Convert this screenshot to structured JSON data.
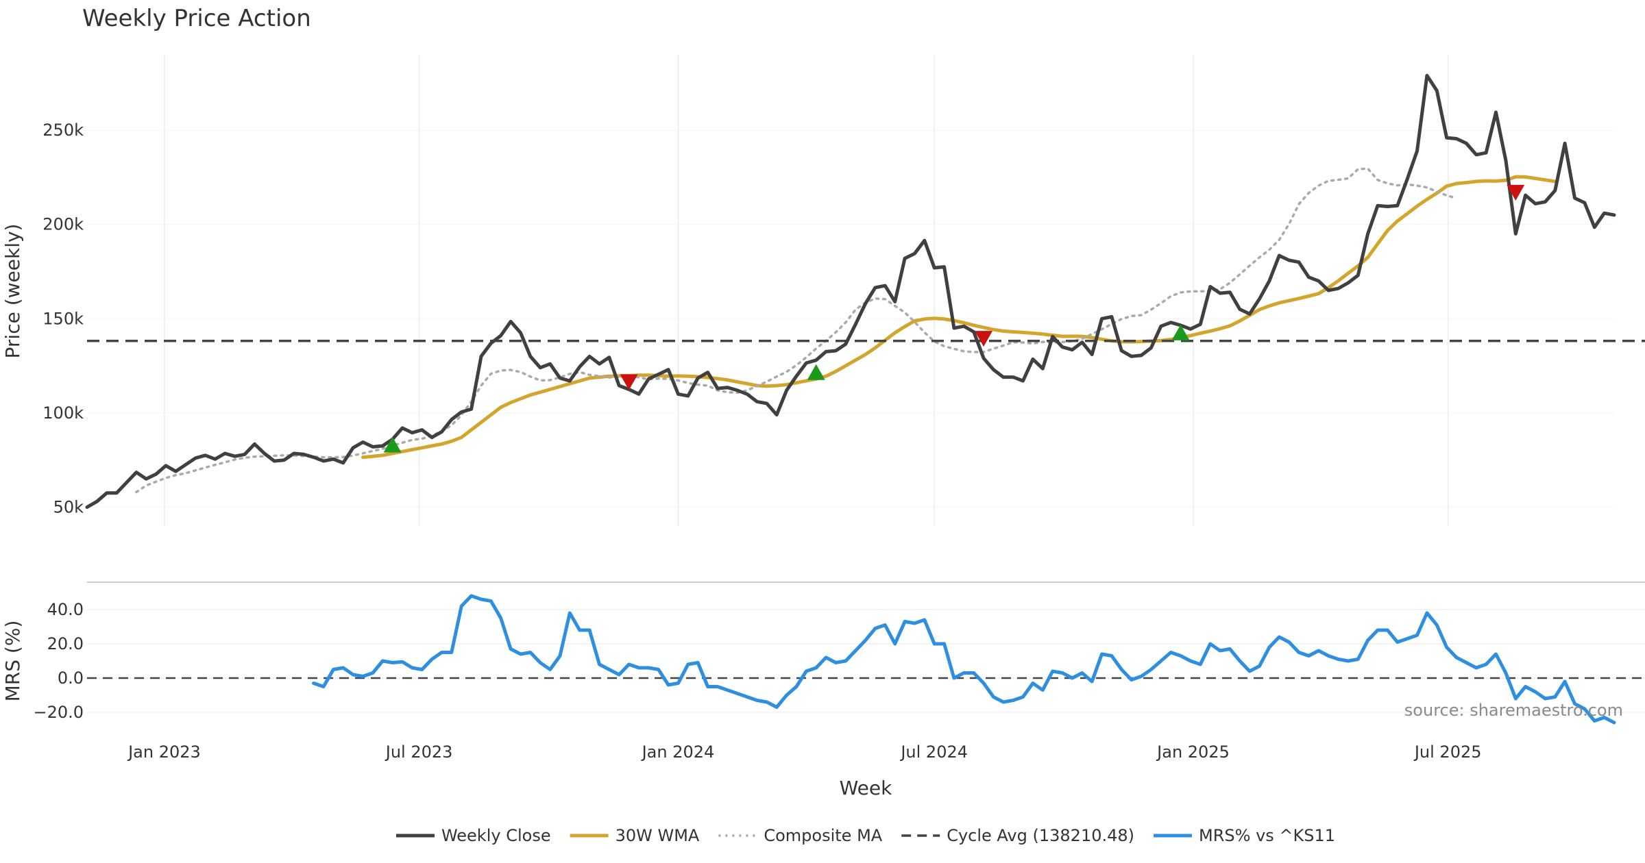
{
  "chart_data": [
    {
      "type": "line",
      "title": "Weekly Price Action",
      "ylabel": "Price (weekly)",
      "ylim": [
        40000,
        290000
      ],
      "y_ticks": [
        {
          "value": 50000,
          "label": "50k"
        },
        {
          "value": 100000,
          "label": "100k"
        },
        {
          "value": 150000,
          "label": "150k"
        },
        {
          "value": 200000,
          "label": "200k"
        },
        {
          "value": 250000,
          "label": "250k"
        }
      ],
      "grid": true,
      "x_start": "2022-11-07",
      "x_step_days": 7,
      "xlim": [
        "2022-11-07",
        "2025-10-27"
      ],
      "series": [
        {
          "name": "Weekly Close",
          "color": "#404040",
          "style": "solid",
          "values": [
            50000,
            53000,
            57500,
            57500,
            63000,
            68500,
            65000,
            67500,
            72000,
            69000,
            72500,
            76000,
            77500,
            75500,
            78500,
            77000,
            78000,
            83500,
            78500,
            74500,
            75000,
            78500,
            78000,
            76500,
            74500,
            75500,
            73500,
            81500,
            84500,
            82000,
            82500,
            86000,
            92000,
            89500,
            91000,
            87000,
            90000,
            96500,
            100500,
            102000,
            130000,
            137000,
            141000,
            148500,
            142500,
            130000,
            124000,
            126000,
            118500,
            117000,
            124500,
            130000,
            126000,
            129500,
            114500,
            112500,
            110000,
            118000,
            120500,
            123000,
            110000,
            109000,
            118500,
            121500,
            113000,
            113500,
            112000,
            110000,
            106000,
            105000,
            99000,
            112000,
            119500,
            126500,
            128000,
            132500,
            133000,
            136500,
            147000,
            158000,
            166500,
            167500,
            159000,
            182000,
            184500,
            191500,
            177000,
            177500,
            145000,
            146000,
            143000,
            129000,
            123000,
            119000,
            119000,
            117000,
            128500,
            123500,
            140500,
            135000,
            133500,
            137500,
            131000,
            150000,
            151000,
            133000,
            130000,
            130500,
            134500,
            146000,
            148000,
            146500,
            144500,
            147000,
            167000,
            163500,
            164000,
            155000,
            152500,
            160500,
            170000,
            183500,
            181000,
            180000,
            172000,
            170000,
            165000,
            166000,
            169000,
            173000,
            195000,
            210000,
            209500,
            210000,
            224000,
            239000,
            279000,
            271000,
            246000,
            245500,
            243000,
            237000,
            238000,
            259500,
            234000,
            195000,
            215500,
            211000,
            212000,
            218000,
            243000,
            214000,
            211500,
            198500,
            206000,
            205000
          ]
        },
        {
          "name": "30W WMA",
          "color": "#d4a52c",
          "style": "solid",
          "start_index": 28,
          "values": [
            76500,
            77000,
            77500,
            78500,
            79500,
            80500,
            81500,
            82500,
            83500,
            85000,
            87000,
            91000,
            95000,
            99000,
            103000,
            105500,
            107500,
            109500,
            111000,
            112500,
            114000,
            115500,
            117000,
            118500,
            119000,
            119500,
            119700,
            119800,
            120000,
            120000,
            119800,
            119500,
            119600,
            119500,
            119200,
            118800,
            118200,
            117500,
            116500,
            115500,
            114500,
            114200,
            114500,
            115000,
            116000,
            117000,
            118000,
            119500,
            122000,
            125000,
            128000,
            131000,
            134500,
            138500,
            142500,
            145800,
            148800,
            149800,
            150200,
            149800,
            149000,
            147800,
            146500,
            145300,
            144200,
            143400,
            143000,
            142700,
            142300,
            141800,
            141200,
            140600,
            140700,
            140600,
            140000,
            139100,
            138200,
            137800,
            137700,
            137900,
            138100,
            138400,
            139000,
            140000,
            141000,
            142300,
            143400,
            144700,
            146200,
            148800,
            151800,
            154800,
            156800,
            158400,
            159600,
            160700,
            162000,
            163300,
            166400,
            170100,
            174100,
            178000,
            182500,
            189700,
            196800,
            201800,
            205700,
            209700,
            213300,
            216600,
            220300,
            221700,
            222200,
            222800,
            223100,
            223000,
            223400,
            225300,
            225200,
            224400,
            223600,
            222800
          ]
        },
        {
          "name": "Composite MA",
          "color": "#aaaaaa",
          "style": "dotted",
          "start_index": 5,
          "values": [
            58000,
            61500,
            63500,
            65500,
            67000,
            68000,
            69500,
            71000,
            72500,
            73800,
            75300,
            76200,
            76800,
            77000,
            77300,
            77500,
            77400,
            77100,
            76800,
            76500,
            76500,
            76600,
            77400,
            78600,
            79800,
            81000,
            82600,
            84200,
            85700,
            86300,
            88000,
            90200,
            93500,
            98800,
            106000,
            114500,
            120800,
            122500,
            122800,
            121700,
            119300,
            117200,
            117400,
            118800,
            120700,
            121600,
            120200,
            119500,
            118800,
            119000,
            119400,
            118900,
            117800,
            118200,
            118100,
            117200,
            115900,
            115000,
            114500,
            112000,
            111000,
            110700,
            112000,
            114300,
            116600,
            119300,
            121800,
            125300,
            129500,
            134200,
            138300,
            142800,
            148000,
            154800,
            158500,
            160700,
            160400,
            156800,
            153300,
            148300,
            142700,
            137900,
            135400,
            134000,
            132700,
            132300,
            132300,
            134100,
            135700,
            137500,
            137400,
            136800,
            137700,
            137400,
            137600,
            138000,
            139300,
            141900,
            144400,
            147200,
            149800,
            151400,
            151900,
            154800,
            158200,
            161900,
            163900,
            164500,
            164500,
            164700,
            165600,
            169000,
            173500,
            178100,
            182500,
            186600,
            191800,
            200200,
            210800,
            216700,
            220600,
            223100,
            223700,
            224400,
            229300,
            229600,
            223600,
            221800,
            220700,
            221200,
            220600,
            219600,
            217400,
            215400,
            213900
          ]
        },
        {
          "name": "Cycle Avg (138210.48)",
          "color": "#444444",
          "style": "dashed",
          "constant": 138210.48
        }
      ],
      "markers": [
        {
          "type": "buy",
          "index": 31,
          "value": 83000,
          "color": "#1a9a1a"
        },
        {
          "type": "sell",
          "index": 55,
          "value": 116500,
          "color": "#cc1111"
        },
        {
          "type": "buy",
          "index": 74,
          "value": 121500,
          "color": "#1a9a1a"
        },
        {
          "type": "sell",
          "index": 91,
          "value": 139500,
          "color": "#cc1111"
        },
        {
          "type": "buy",
          "index": 111,
          "value": 142500,
          "color": "#1a9a1a"
        },
        {
          "type": "sell",
          "index": 145,
          "value": 217000,
          "color": "#cc1111"
        }
      ]
    },
    {
      "type": "line",
      "ylabel": "MRS (%)",
      "xlabel": "Week",
      "ylim": [
        -26,
        52
      ],
      "y_ticks": [
        {
          "value": 40,
          "label": "40.0"
        },
        {
          "value": 20,
          "label": "20.0"
        },
        {
          "value": 0,
          "label": "0.0"
        },
        {
          "value": -20,
          "label": "−20.0"
        }
      ],
      "x_ticks": [
        {
          "date": "2023-01-01",
          "label": "Jan 2023"
        },
        {
          "date": "2023-07-01",
          "label": "Jul 2023"
        },
        {
          "date": "2024-01-01",
          "label": "Jan 2024"
        },
        {
          "date": "2024-07-01",
          "label": "Jul 2024"
        },
        {
          "date": "2025-01-01",
          "label": "Jan 2025"
        },
        {
          "date": "2025-07-01",
          "label": "Jul 2025"
        }
      ],
      "reference_line": 0,
      "series": [
        {
          "name": "MRS% vs ^KS11",
          "color": "#2e8fe0",
          "style": "solid",
          "start_index": 23,
          "values": [
            -3,
            -5,
            5,
            6,
            2,
            1,
            3,
            10,
            9,
            9.5,
            6,
            5,
            11,
            15,
            15,
            42,
            48,
            46,
            45,
            35,
            17,
            14,
            15,
            9,
            5,
            13,
            38,
            28,
            28,
            8,
            5,
            2,
            8,
            6,
            6,
            5,
            -4,
            -3,
            8,
            9,
            -5,
            -5,
            -7,
            -9,
            -11,
            -13,
            -14,
            -17,
            -10,
            -5,
            4,
            6,
            12,
            9,
            10,
            16,
            22,
            29,
            31,
            20,
            33,
            32,
            34,
            20,
            20,
            0,
            3,
            3,
            -3,
            -11,
            -14,
            -13,
            -11,
            -3,
            -7,
            4,
            3,
            0,
            3,
            -2,
            14,
            13,
            5,
            -1,
            1,
            5,
            10,
            15,
            13,
            10,
            8,
            20,
            16,
            17,
            10,
            4,
            7,
            18,
            24,
            21,
            15,
            13,
            16,
            13,
            11,
            10,
            11,
            22,
            28,
            28,
            21,
            23,
            25,
            38,
            31,
            18,
            12,
            9,
            6,
            8,
            14,
            3,
            -12,
            -5,
            -8,
            -12,
            -11,
            -2,
            -15,
            -18,
            -25,
            -23,
            -26
          ]
        }
      ],
      "source_note": "source: sharemaestro.com"
    }
  ],
  "legend": {
    "placement": "bottom-center",
    "items": [
      {
        "label": "Weekly Close",
        "color": "#404040",
        "style": "solid"
      },
      {
        "label": "30W WMA",
        "color": "#d4a52c",
        "style": "solid"
      },
      {
        "label": "Composite MA",
        "color": "#aaaaaa",
        "style": "dotted"
      },
      {
        "label": "Cycle Avg (138210.48)",
        "color": "#444444",
        "style": "dashed"
      },
      {
        "label": "MRS% vs ^KS11",
        "color": "#2e8fe0",
        "style": "solid"
      }
    ]
  }
}
